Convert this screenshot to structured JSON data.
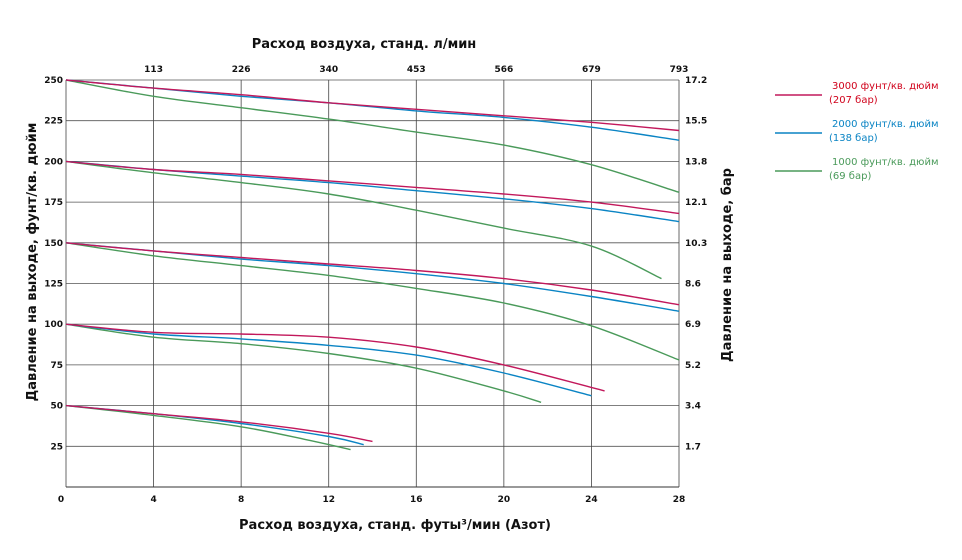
{
  "chart_data": {
    "type": "line",
    "xlabel": "Расход воздуха, станд. футы³/мин (Азот)",
    "x2label": "Расход воздуха, станд. л/мин",
    "ylabel": "Давление на выходе, фунт/кв. дюйм",
    "y2label": "Давление на выходе, бар",
    "xlim": [
      0,
      28
    ],
    "ylim": [
      0,
      250
    ],
    "x_ticks": [
      0,
      4,
      8,
      12,
      16,
      20,
      24,
      28
    ],
    "x2_ticks": [
      {
        "x": 4,
        "label": "113"
      },
      {
        "x": 8,
        "label": "226"
      },
      {
        "x": 12,
        "label": "340"
      },
      {
        "x": 16,
        "label": "453"
      },
      {
        "x": 20,
        "label": "566"
      },
      {
        "x": 24,
        "label": "679"
      },
      {
        "x": 28,
        "label": "793"
      }
    ],
    "y_ticks": [
      25,
      50,
      75,
      100,
      125,
      150,
      175,
      200,
      225,
      250
    ],
    "y2_ticks": [
      {
        "y": 25,
        "label": "1.7"
      },
      {
        "y": 50,
        "label": "3.4"
      },
      {
        "y": 75,
        "label": "5.2"
      },
      {
        "y": 100,
        "label": "6.9"
      },
      {
        "y": 125,
        "label": "8.6"
      },
      {
        "y": 150,
        "label": "10.3"
      },
      {
        "y": 175,
        "label": "12.1"
      },
      {
        "y": 200,
        "label": "13.8"
      },
      {
        "y": 225,
        "label": "15.5"
      },
      {
        "y": 250,
        "label": "17.2"
      }
    ],
    "grid": "vertical",
    "legend": "right",
    "series": [
      {
        "name": "3000 фунт/кв. дюйм",
        "name2": "(207 бар)",
        "color": "#c2185b",
        "label_color": "#d0021b",
        "curves": [
          [
            [
              0,
              250
            ],
            [
              4,
              245
            ],
            [
              8,
              241
            ],
            [
              12,
              236
            ],
            [
              16,
              232
            ],
            [
              20,
              228
            ],
            [
              24,
              224
            ],
            [
              28,
              219
            ]
          ],
          [
            [
              0,
              200
            ],
            [
              4,
              195
            ],
            [
              8,
              192
            ],
            [
              12,
              188
            ],
            [
              16,
              184
            ],
            [
              20,
              180
            ],
            [
              24,
              175
            ],
            [
              28,
              168
            ]
          ],
          [
            [
              0,
              150
            ],
            [
              4,
              145
            ],
            [
              8,
              141
            ],
            [
              12,
              137
            ],
            [
              16,
              133
            ],
            [
              20,
              128
            ],
            [
              24,
              121
            ],
            [
              28,
              112
            ]
          ],
          [
            [
              0,
              100
            ],
            [
              4,
              95
            ],
            [
              8,
              94
            ],
            [
              12,
              92
            ],
            [
              16,
              86
            ],
            [
              20,
              75
            ],
            [
              24.6,
              59
            ]
          ],
          [
            [
              0,
              50
            ],
            [
              4,
              45
            ],
            [
              8,
              40
            ],
            [
              12,
              33
            ],
            [
              14,
              28
            ]
          ]
        ]
      },
      {
        "name": "2000 фунт/кв. дюйм",
        "name2": "(138 бар)",
        "color": "#0a84c4",
        "label_color": "#0a84c4",
        "curves": [
          [
            [
              0,
              250
            ],
            [
              4,
              245
            ],
            [
              8,
              240
            ],
            [
              12,
              236
            ],
            [
              16,
              231
            ],
            [
              20,
              227
            ],
            [
              24,
              221
            ],
            [
              28,
              213
            ]
          ],
          [
            [
              0,
              200
            ],
            [
              4,
              195
            ],
            [
              8,
              191
            ],
            [
              12,
              187
            ],
            [
              16,
              182
            ],
            [
              20,
              177
            ],
            [
              24,
              171
            ],
            [
              28,
              163
            ]
          ],
          [
            [
              0,
              150
            ],
            [
              4,
              145
            ],
            [
              8,
              140
            ],
            [
              12,
              136
            ],
            [
              16,
              131
            ],
            [
              20,
              125
            ],
            [
              24,
              117
            ],
            [
              28,
              108
            ]
          ],
          [
            [
              0,
              100
            ],
            [
              4,
              94
            ],
            [
              8,
              91
            ],
            [
              12,
              87
            ],
            [
              16,
              81
            ],
            [
              20,
              70
            ],
            [
              24,
              56
            ]
          ],
          [
            [
              0,
              50
            ],
            [
              4,
              45
            ],
            [
              8,
              39
            ],
            [
              12,
              31
            ],
            [
              13.6,
              26
            ]
          ]
        ]
      },
      {
        "name": "1000 фунт/кв. дюйм",
        "name2": "(69 бар)",
        "color": "#4a9a5a",
        "label_color": "#4a9a5a",
        "curves": [
          [
            [
              0,
              250
            ],
            [
              4,
              240
            ],
            [
              8,
              233
            ],
            [
              12,
              226
            ],
            [
              16,
              218
            ],
            [
              20,
              210
            ],
            [
              24,
              198
            ],
            [
              28,
              181
            ]
          ],
          [
            [
              0,
              200
            ],
            [
              4,
              193
            ],
            [
              8,
              187
            ],
            [
              12,
              180
            ],
            [
              16,
              170
            ],
            [
              20,
              159
            ],
            [
              24,
              148
            ],
            [
              27.2,
              128
            ]
          ],
          [
            [
              0,
              150
            ],
            [
              4,
              142
            ],
            [
              8,
              136
            ],
            [
              12,
              130
            ],
            [
              16,
              122
            ],
            [
              20,
              113
            ],
            [
              24,
              99
            ],
            [
              28,
              78
            ]
          ],
          [
            [
              0,
              100
            ],
            [
              4,
              92
            ],
            [
              8,
              88
            ],
            [
              12,
              82
            ],
            [
              16,
              73
            ],
            [
              20,
              59
            ],
            [
              21.7,
              52
            ]
          ],
          [
            [
              0,
              50
            ],
            [
              4,
              44
            ],
            [
              8,
              37
            ],
            [
              11,
              29
            ],
            [
              13,
              23
            ]
          ]
        ]
      }
    ]
  }
}
